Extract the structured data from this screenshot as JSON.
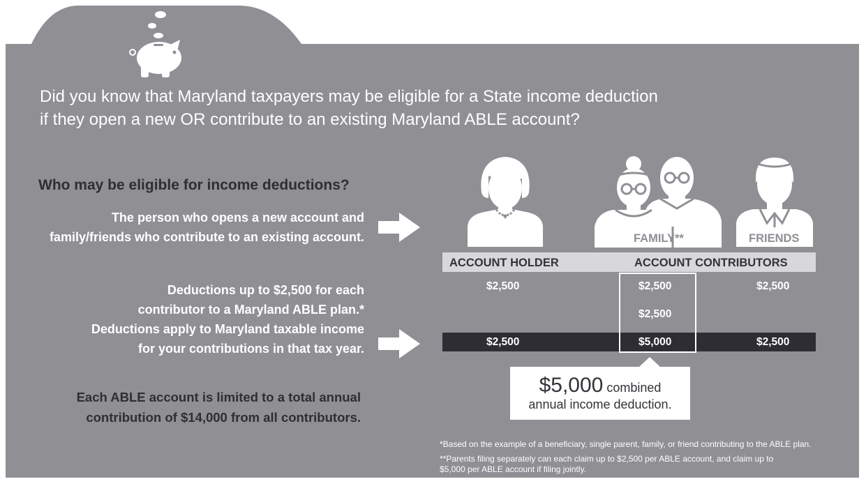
{
  "colors": {
    "panel": "#8f8f94",
    "dark": "#2d2d33",
    "bar": "#d8d8da",
    "white": "#ffffff"
  },
  "icons": [
    "piggy-bank-icon",
    "arrow-right-icon",
    "account-holder-icon",
    "family-icon",
    "friends-icon"
  ],
  "headline": {
    "line1": "Did you know that Maryland taxpayers may be eligible for a State income deduction",
    "line2": "if they open a new OR contribute to an existing Maryland ABLE account?"
  },
  "subhead": "Who may be eligible for income deductions?",
  "eligible": {
    "line1": "The person who opens a new account and",
    "line2": "family/friends who contribute to an existing account."
  },
  "deductions": {
    "line1": "Deductions up to $2,500 for each",
    "line2": "contributor to a Maryland ABLE plan.*",
    "line3": "Deductions apply to Maryland taxable income",
    "line4": "for your contributions in that tax year."
  },
  "limit": {
    "line1": "Each ABLE account is limited to a total annual",
    "line2": "contribution of $14,000 from all contributors."
  },
  "people": {
    "family": "FAMILY**",
    "friends": "FRIENDS"
  },
  "table": {
    "header_holder": "ACCOUNT HOLDER",
    "header_contributors": "ACCOUNT CONTRIBUTORS",
    "holder_amount": "$2,500",
    "family_amount1": "$2,500",
    "family_amount2": "$2,500",
    "friends_amount": "$2,500",
    "total_holder": "$2,500",
    "total_family": "$5,000",
    "total_friends": "$2,500"
  },
  "callout": {
    "amount": "$5,000",
    "text1": " combined",
    "text2": "annual income deduction."
  },
  "footnotes": {
    "note1": "*Based on the example of a beneficiary, single parent, family, or friend contributing to the ABLE plan.",
    "note2_line1": "**Parents filing separately can each claim up to $2,500 per ABLE account, and claim up to",
    "note2_line2": "$5,000 per ABLE account if filing jointly."
  }
}
